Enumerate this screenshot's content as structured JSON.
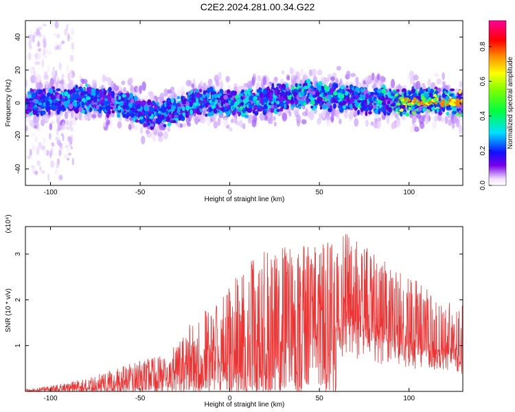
{
  "title": "C2E2.2024.281.00.34.G22",
  "chart_data": [
    {
      "type": "heatmap",
      "xlabel": "Height of straight line (km)",
      "ylabel": "Frequency (Hz)",
      "xlim": [
        -114,
        130
      ],
      "ylim": [
        -50,
        50
      ],
      "xticks": [
        -100,
        -50,
        0,
        50,
        100
      ],
      "yticks": [
        -40,
        -20,
        0,
        20,
        40
      ],
      "colorbar": {
        "label": "Normalized spectral amplitude",
        "range": [
          0.0,
          0.95
        ],
        "ticks": [
          0.0,
          0.2,
          0.4,
          0.6,
          0.8
        ]
      },
      "center_frequency_trace": {
        "x": [
          -114,
          -100,
          -80,
          -60,
          -50,
          -40,
          -30,
          -20,
          0,
          20,
          40,
          60,
          75,
          100,
          130
        ],
        "y": [
          0,
          1,
          2,
          0,
          -5,
          -8,
          -4,
          1,
          -1,
          2,
          5,
          4,
          1,
          1,
          0
        ]
      }
    },
    {
      "type": "line",
      "xlabel": "Height of straight line (km)",
      "ylabel": "SNR (10 * v/v)",
      "y_multiplier": "(x10⁴)",
      "xlim": [
        -114,
        130
      ],
      "ylim": [
        0,
        3.6
      ],
      "xticks": [
        -100,
        -50,
        0,
        50,
        100
      ],
      "yticks": [
        1,
        2,
        3
      ],
      "color": "#ee3333",
      "envelope": {
        "x": [
          -114,
          -100,
          -80,
          -60,
          -40,
          -30,
          -20,
          0,
          10,
          20,
          30,
          40,
          50,
          60,
          70,
          80,
          90,
          100,
          110,
          120,
          130
        ],
        "y": [
          0.05,
          0.12,
          0.28,
          0.55,
          0.8,
          1.0,
          1.6,
          2.3,
          2.9,
          3.1,
          3.2,
          3.3,
          3.2,
          3.4,
          3.5,
          3.1,
          2.7,
          2.5,
          2.3,
          2.0,
          1.9
        ]
      }
    }
  ]
}
